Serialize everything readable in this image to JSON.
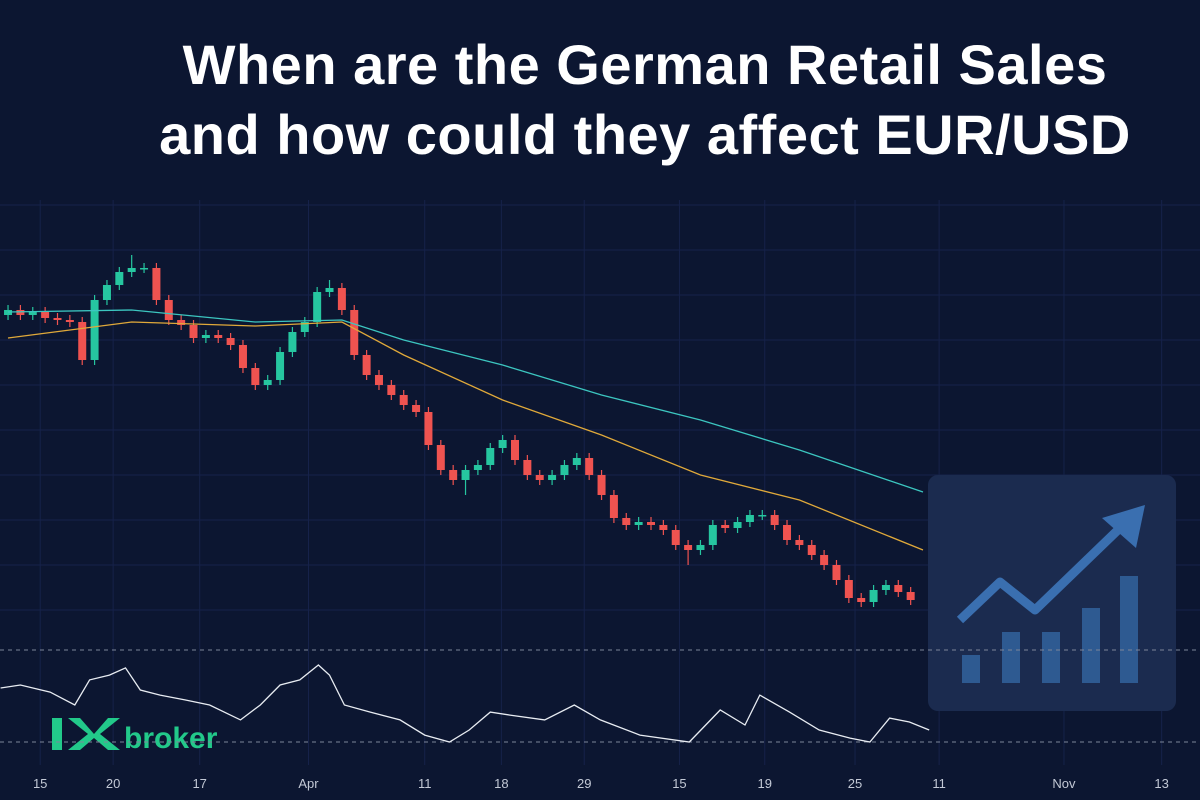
{
  "chart_data": {
    "type": "candlestick",
    "title": [
      "When are the German Retail Sales",
      "and how could they affect EUR/USD"
    ],
    "logo": "broker",
    "xlim": [
      -0.65,
      96.4
    ],
    "xticks": [
      {
        "value": 2.6,
        "label": "15"
      },
      {
        "value": 8.5,
        "label": "20"
      },
      {
        "value": 15.5,
        "label": "17"
      },
      {
        "value": 24.3,
        "label": "Apr"
      },
      {
        "value": 33.7,
        "label": "11"
      },
      {
        "value": 39.9,
        "label": "18"
      },
      {
        "value": 46.6,
        "label": "29"
      },
      {
        "value": 54.3,
        "label": "15"
      },
      {
        "value": 61.2,
        "label": "19"
      },
      {
        "value": 68.5,
        "label": "25"
      },
      {
        "value": 75.3,
        "label": "11"
      },
      {
        "value": 85.4,
        "label": "Nov"
      },
      {
        "value": 93.3,
        "label": "13"
      }
    ],
    "ylim": [
      0,
      380
    ],
    "up_color": "#26c6a0",
    "down_color": "#ef5350",
    "open": [
      305,
      310,
      305,
      308,
      302,
      300,
      298,
      260,
      320,
      335,
      348,
      352,
      352,
      320,
      300,
      295,
      282,
      285,
      282,
      275,
      252,
      235,
      240,
      268,
      288,
      298,
      328,
      332,
      310,
      265,
      245,
      235,
      225,
      215,
      208,
      175,
      150,
      140,
      150,
      155,
      172,
      180,
      160,
      145,
      140,
      145,
      155,
      162,
      145,
      125,
      102,
      95,
      98,
      95,
      90,
      75,
      70,
      75,
      95,
      92,
      98,
      105,
      105,
      95,
      80,
      75,
      65,
      55,
      40,
      22,
      18,
      30,
      35,
      28
    ],
    "high": [
      315,
      315,
      313,
      313,
      307,
      305,
      303,
      325,
      340,
      353,
      365,
      357,
      357,
      325,
      305,
      300,
      290,
      290,
      287,
      280,
      257,
      245,
      273,
      293,
      303,
      333,
      340,
      337,
      315,
      270,
      250,
      240,
      230,
      220,
      213,
      180,
      155,
      155,
      160,
      177,
      185,
      185,
      165,
      150,
      150,
      160,
      167,
      167,
      150,
      130,
      107,
      103,
      103,
      100,
      95,
      80,
      80,
      100,
      100,
      103,
      110,
      110,
      110,
      100,
      85,
      80,
      70,
      60,
      45,
      27,
      35,
      40,
      40,
      33
    ],
    "low": [
      300,
      300,
      300,
      297,
      295,
      293,
      255,
      255,
      315,
      330,
      343,
      347,
      315,
      295,
      290,
      277,
      277,
      277,
      270,
      247,
      230,
      230,
      235,
      263,
      283,
      293,
      323,
      305,
      260,
      240,
      230,
      220,
      210,
      203,
      170,
      145,
      135,
      125,
      145,
      150,
      167,
      155,
      140,
      135,
      135,
      140,
      150,
      140,
      120,
      97,
      90,
      90,
      90,
      85,
      70,
      55,
      65,
      70,
      87,
      87,
      93,
      100,
      90,
      75,
      70,
      60,
      50,
      35,
      17,
      13,
      13,
      25,
      23,
      15
    ],
    "close": [
      310,
      305,
      308,
      302,
      300,
      298,
      260,
      320,
      335,
      348,
      352,
      352,
      320,
      300,
      295,
      282,
      285,
      282,
      275,
      252,
      235,
      240,
      268,
      288,
      298,
      328,
      332,
      310,
      265,
      245,
      235,
      225,
      215,
      208,
      175,
      150,
      140,
      150,
      155,
      172,
      180,
      160,
      145,
      140,
      145,
      155,
      162,
      145,
      125,
      102,
      95,
      98,
      95,
      90,
      75,
      70,
      75,
      95,
      92,
      98,
      105,
      105,
      95,
      80,
      75,
      65,
      55,
      40,
      22,
      18,
      30,
      35,
      28,
      20
    ],
    "series": [
      {
        "color": "#3cc6c0",
        "x": [
          0,
          10,
          20,
          27,
          32,
          40,
          48,
          56,
          64,
          74
        ],
        "values": [
          308,
          310,
          298,
          300,
          280,
          255,
          225,
          200,
          170,
          128
        ]
      },
      {
        "color": "#e0a93a",
        "x": [
          0,
          10,
          20,
          27,
          32,
          40,
          48,
          56,
          64,
          74
        ],
        "values": [
          282,
          298,
          294,
          298,
          265,
          220,
          185,
          145,
          120,
          70
        ]
      }
    ],
    "oscillator": {
      "color": "#e8ecf2",
      "ylim": [
        0,
        100
      ],
      "levels": [
        70,
        30
      ],
      "x": [
        -0.6,
        1,
        3.4,
        5.4,
        6.6,
        8.2,
        9.5,
        10.7,
        12.3,
        14.3,
        16.3,
        18.8,
        20.4,
        22,
        23.6,
        25.1,
        26,
        27.2,
        29.3,
        31.7,
        33.7,
        35.7,
        37.3,
        39,
        40.6,
        43.4,
        45.8,
        47.9,
        51.1,
        55.1,
        57.6,
        59.6,
        60.8,
        63.2,
        65.6,
        68.1,
        69.7,
        71.3,
        72.9,
        74.5
      ],
      "values": [
        53.5,
        54.8,
        51.7,
        46.1,
        57,
        59.1,
        62.2,
        52.6,
        50.4,
        48.3,
        46.1,
        39.6,
        46.1,
        54.8,
        57,
        63.5,
        59.1,
        46.1,
        43,
        39.6,
        33,
        30,
        35.2,
        43,
        41.7,
        39.6,
        46.1,
        39.6,
        33,
        30,
        43.9,
        37.4,
        50.4,
        43,
        35.2,
        31.7,
        30,
        40.4,
        38.7,
        35.2
      ]
    }
  }
}
